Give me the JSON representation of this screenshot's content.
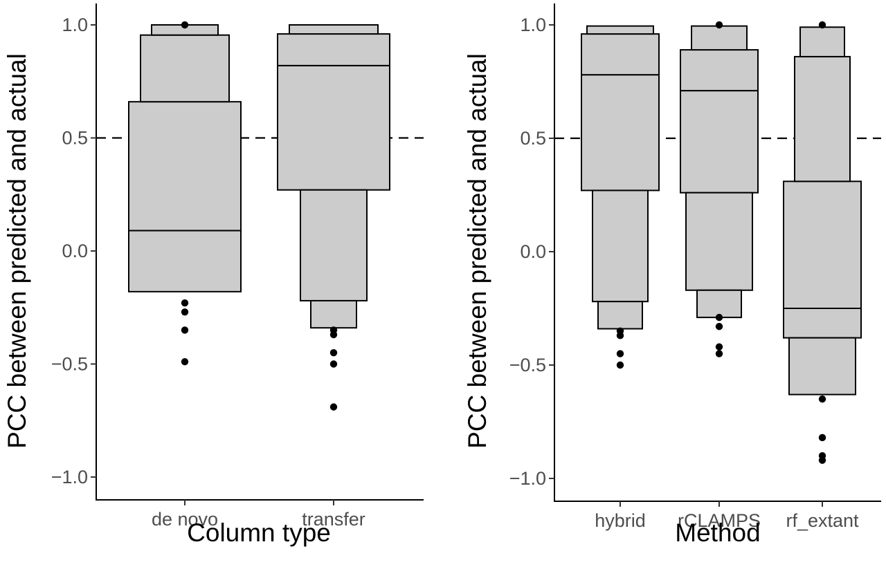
{
  "chart_data": [
    {
      "type": "letter-value-plot",
      "xlabel": "Column type",
      "ylabel": "PCC between predicted and actual",
      "ylim": [
        -1.1,
        1.08
      ],
      "yticks": [
        1.0,
        0.5,
        0.0,
        -0.5,
        -1.0
      ],
      "ytick_labels": [
        "1.0",
        "0.5",
        "0.0",
        "−0.5",
        "−1.0"
      ],
      "reference_line": 0.5,
      "grid": false,
      "categories": [
        "de novo",
        "transfer"
      ],
      "boxes": [
        [
          {
            "lo": -0.18,
            "hi": 0.09
          },
          {
            "lo": 0.09,
            "hi": 0.66
          },
          {
            "lo": 0.66,
            "hi": 0.955
          },
          {
            "lo": 0.955,
            "hi": 1.0
          }
        ],
        [
          {
            "lo": -0.34,
            "hi": -0.22
          },
          {
            "lo": -0.22,
            "hi": 0.27
          },
          {
            "lo": 0.27,
            "hi": 0.82
          },
          {
            "lo": 0.82,
            "hi": 0.96
          },
          {
            "lo": 0.96,
            "hi": 1.0
          }
        ]
      ],
      "outliers": [
        [
          1.0,
          -0.23,
          -0.27,
          -0.35,
          -0.49
        ],
        [
          -0.35,
          -0.37,
          -0.45,
          -0.5,
          -0.69
        ]
      ]
    },
    {
      "type": "letter-value-plot",
      "xlabel": "Method",
      "ylabel": "PCC between predicted and actual",
      "ylim": [
        -1.1,
        1.08
      ],
      "yticks": [
        1.0,
        0.5,
        0.0,
        -0.5,
        -1.0
      ],
      "ytick_labels": [
        "1.0",
        "0.5",
        "0.0",
        "−0.5",
        "−1.0"
      ],
      "reference_line": 0.5,
      "grid": false,
      "categories": [
        "hybrid",
        "rCLAMPS",
        "rf_extant"
      ],
      "boxes": [
        [
          {
            "lo": -0.34,
            "hi": -0.22
          },
          {
            "lo": -0.22,
            "hi": 0.27
          },
          {
            "lo": 0.27,
            "hi": 0.78
          },
          {
            "lo": 0.78,
            "hi": 0.96
          },
          {
            "lo": 0.96,
            "hi": 0.995
          }
        ],
        [
          {
            "lo": -0.29,
            "hi": -0.17
          },
          {
            "lo": -0.17,
            "hi": 0.26
          },
          {
            "lo": 0.26,
            "hi": 0.71
          },
          {
            "lo": 0.71,
            "hi": 0.89
          },
          {
            "lo": 0.89,
            "hi": 0.995
          }
        ],
        [
          {
            "lo": -0.63,
            "hi": -0.38
          },
          {
            "lo": -0.38,
            "hi": -0.25
          },
          {
            "lo": -0.25,
            "hi": 0.31
          },
          {
            "lo": 0.31,
            "hi": 0.86
          },
          {
            "lo": 0.86,
            "hi": 0.99
          }
        ]
      ],
      "outliers": [
        [
          -0.35,
          -0.37,
          -0.45,
          -0.5
        ],
        [
          1.0,
          -0.29,
          -0.33,
          -0.42,
          -0.45
        ],
        [
          1.0,
          -0.65,
          -0.82,
          -0.9,
          -0.92
        ]
      ]
    }
  ]
}
